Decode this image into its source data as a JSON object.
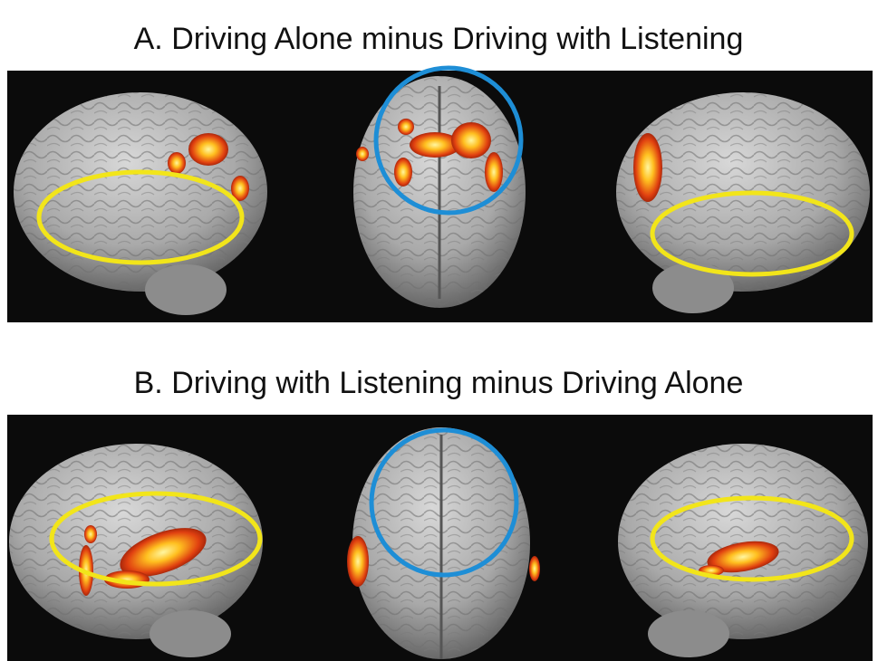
{
  "panels": [
    {
      "title": "A. Driving Alone minus Driving with Listening"
    },
    {
      "title": "B. Driving with Listening minus Driving Alone"
    }
  ]
}
